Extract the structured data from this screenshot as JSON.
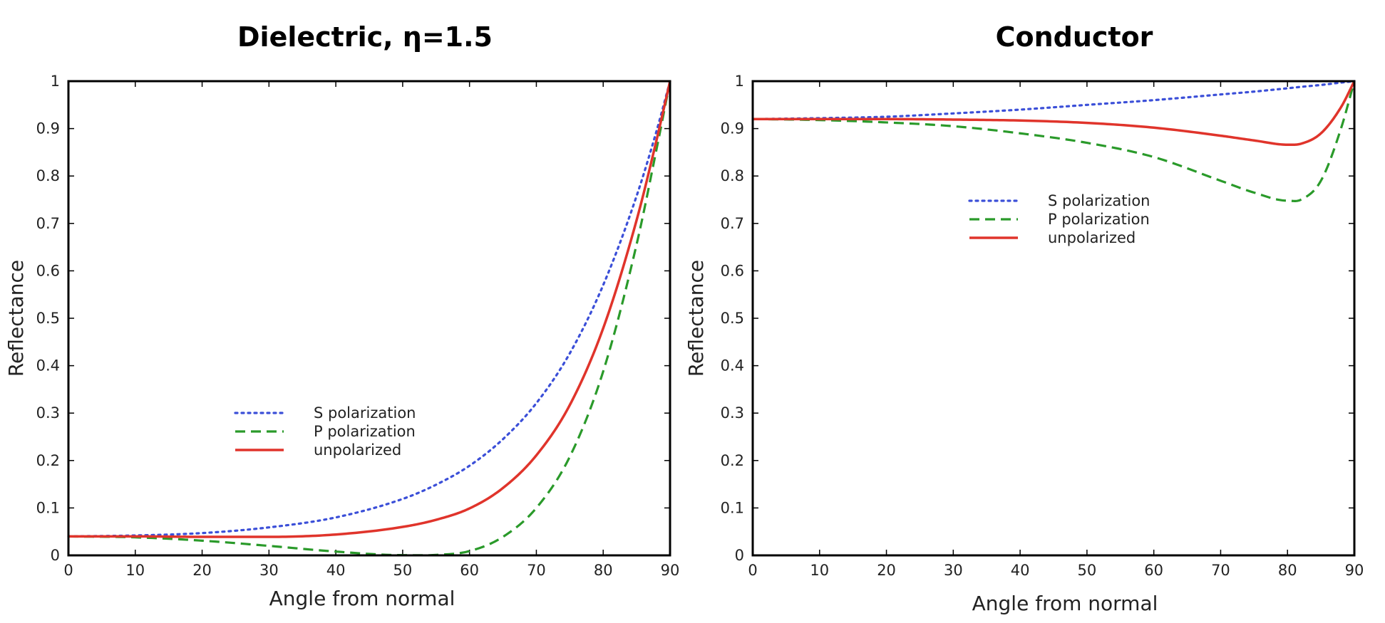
{
  "chart_data": [
    {
      "type": "line",
      "title": "Dielectric, η=1.5",
      "xlabel": "Angle from normal",
      "ylabel": "Reflectance",
      "xlim": [
        0,
        90
      ],
      "ylim": [
        0,
        1
      ],
      "x_ticks": [
        "0",
        "10",
        "20",
        "30",
        "40",
        "50",
        "60",
        "70",
        "80",
        "90"
      ],
      "y_ticks": [
        "0",
        "0.1",
        "0.2",
        "0.3",
        "0.4",
        "0.5",
        "0.6",
        "0.7",
        "0.8",
        "0.9",
        "1"
      ],
      "grid": false,
      "legend_position": "lower-center",
      "x": [
        0,
        10,
        20,
        30,
        40,
        50,
        55,
        60,
        65,
        70,
        75,
        80,
        85,
        88,
        90
      ],
      "series": [
        {
          "name": "S polarization",
          "style": "dotted",
          "color": "#3b4fd8",
          "values": [
            0.04,
            0.042,
            0.047,
            0.059,
            0.08,
            0.119,
            0.149,
            0.189,
            0.245,
            0.321,
            0.426,
            0.57,
            0.758,
            0.896,
            1.0
          ]
        },
        {
          "name": "P polarization",
          "style": "dashed",
          "color": "#2a9a2a",
          "values": [
            0.04,
            0.038,
            0.031,
            0.02,
            0.008,
            0.0005,
            0.0009,
            0.009,
            0.039,
            0.1,
            0.208,
            0.388,
            0.656,
            0.858,
            1.0
          ]
        },
        {
          "name": "unpolarized",
          "style": "solid",
          "color": "#e0342b",
          "values": [
            0.04,
            0.04,
            0.039,
            0.039,
            0.044,
            0.06,
            0.075,
            0.099,
            0.142,
            0.211,
            0.317,
            0.479,
            0.707,
            0.877,
            1.0
          ]
        }
      ]
    },
    {
      "type": "line",
      "title": "Conductor",
      "xlabel": "Angle from normal",
      "ylabel": "Reflectance",
      "xlim": [
        0,
        90
      ],
      "ylim": [
        0,
        1
      ],
      "x_ticks": [
        "0",
        "10",
        "20",
        "30",
        "40",
        "50",
        "60",
        "70",
        "80",
        "90"
      ],
      "y_ticks": [
        "0",
        "0.1",
        "0.2",
        "0.3",
        "0.4",
        "0.5",
        "0.6",
        "0.7",
        "0.8",
        "0.9",
        "1"
      ],
      "grid": false,
      "legend_position": "upper-center",
      "x": [
        0,
        10,
        20,
        30,
        40,
        50,
        60,
        70,
        75,
        80,
        82,
        85,
        88,
        90
      ],
      "series": [
        {
          "name": "S polarization",
          "style": "dotted",
          "color": "#3b4fd8",
          "values": [
            0.92,
            0.922,
            0.925,
            0.932,
            0.94,
            0.95,
            0.96,
            0.972,
            0.978,
            0.985,
            0.988,
            0.992,
            0.997,
            1.0
          ]
        },
        {
          "name": "P polarization",
          "style": "dashed",
          "color": "#2a9a2a",
          "values": [
            0.92,
            0.918,
            0.913,
            0.905,
            0.89,
            0.87,
            0.84,
            0.79,
            0.765,
            0.748,
            0.75,
            0.79,
            0.9,
            1.0
          ]
        },
        {
          "name": "unpolarized",
          "style": "solid",
          "color": "#e0342b",
          "values": [
            0.92,
            0.92,
            0.92,
            0.919,
            0.917,
            0.912,
            0.902,
            0.885,
            0.875,
            0.866,
            0.868,
            0.89,
            0.945,
            1.0
          ]
        }
      ]
    }
  ]
}
